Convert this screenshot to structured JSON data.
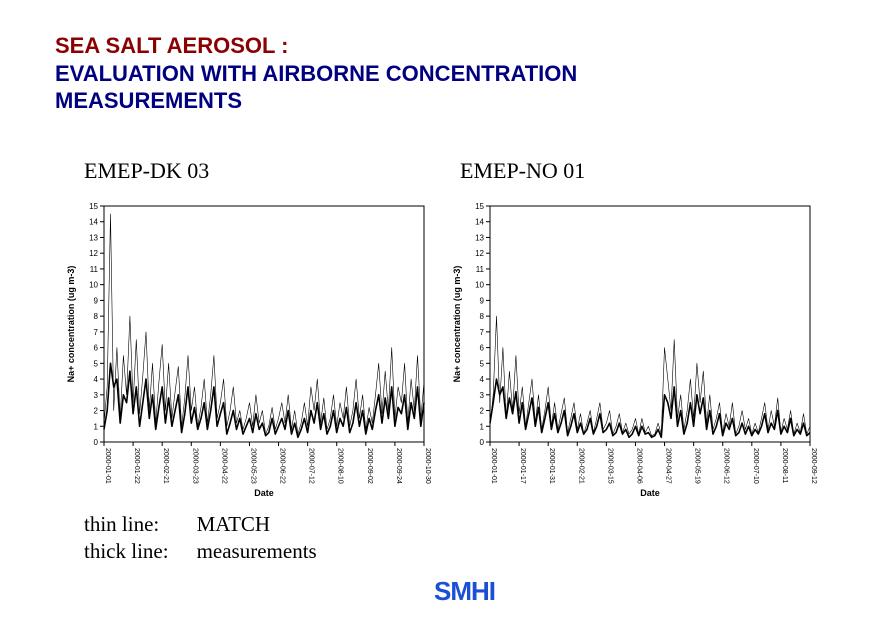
{
  "title": {
    "line1": "SEA SALT AEROSOL :",
    "line2": "EVALUATION WITH AIRBORNE CONCENTRATION",
    "line3": "MEASUREMENTS"
  },
  "charts": {
    "left": {
      "label": "EMEP-DK 03",
      "type": "line",
      "y_axis_label": "Na+ concentration (ug m-3)",
      "x_axis_label": "Date",
      "ylim": [
        0,
        15
      ],
      "ytick_step": 1,
      "background_color": "#ffffff",
      "axis_color": "#000000",
      "x_ticks": [
        "2000-01-01",
        "2000-01-22",
        "2000-02-21",
        "2000-03-23",
        "2000-04-22",
        "2000-05-23",
        "2000-06-22",
        "2000-07-12",
        "2000-08-10",
        "2000-09-02",
        "2000-09-24",
        "2000-10-30"
      ],
      "series": [
        {
          "name": "MATCH",
          "stroke": "#000000",
          "stroke_width": 0.6,
          "values": [
            1.2,
            3.5,
            14.5,
            2.0,
            6.0,
            1.5,
            5.5,
            3.0,
            8.0,
            2.5,
            6.5,
            1.8,
            4.2,
            7.0,
            2.0,
            5.0,
            1.2,
            3.8,
            6.2,
            2.0,
            5.0,
            1.5,
            3.2,
            4.8,
            1.0,
            2.8,
            5.5,
            2.0,
            3.5,
            1.0,
            2.2,
            4.0,
            1.2,
            3.0,
            5.5,
            1.5,
            2.5,
            4.0,
            1.0,
            2.0,
            3.5,
            1.2,
            2.0,
            0.8,
            1.5,
            2.5,
            1.0,
            3.0,
            1.2,
            2.0,
            0.5,
            1.0,
            2.2,
            0.8,
            1.5,
            2.5,
            1.2,
            3.0,
            0.8,
            2.0,
            0.5,
            1.2,
            2.5,
            1.0,
            3.5,
            2.0,
            4.0,
            1.2,
            2.8,
            0.8,
            1.5,
            3.0,
            1.0,
            2.5,
            1.5,
            3.5,
            1.0,
            2.0,
            4.0,
            1.5,
            3.0,
            0.8,
            2.2,
            1.2,
            3.0,
            5.0,
            1.8,
            4.5,
            2.0,
            6.0,
            1.5,
            3.5,
            2.5,
            5.0,
            1.2,
            4.0,
            2.0,
            5.5,
            1.5,
            3.8
          ]
        },
        {
          "name": "measurements",
          "stroke": "#000000",
          "stroke_width": 1.6,
          "values": [
            0.8,
            2.0,
            5.0,
            3.5,
            4.0,
            1.2,
            3.0,
            2.5,
            4.5,
            1.8,
            3.5,
            1.0,
            2.5,
            4.0,
            1.5,
            3.0,
            0.8,
            2.2,
            3.5,
            1.2,
            2.8,
            1.0,
            2.0,
            3.0,
            0.6,
            1.8,
            3.5,
            1.2,
            2.2,
            0.8,
            1.5,
            2.5,
            0.8,
            2.0,
            3.5,
            1.0,
            1.8,
            2.5,
            0.5,
            1.2,
            2.0,
            0.8,
            1.5,
            0.5,
            1.0,
            1.5,
            0.6,
            1.8,
            0.8,
            1.2,
            0.4,
            0.6,
            1.5,
            0.5,
            1.0,
            1.5,
            0.8,
            2.0,
            0.5,
            1.2,
            0.3,
            0.8,
            1.5,
            0.6,
            2.0,
            1.2,
            2.5,
            0.8,
            1.8,
            0.5,
            1.0,
            2.0,
            0.6,
            1.5,
            1.0,
            2.2,
            0.6,
            1.2,
            2.5,
            1.0,
            2.0,
            0.5,
            1.5,
            0.8,
            2.0,
            3.0,
            1.2,
            2.8,
            1.5,
            3.5,
            1.0,
            2.2,
            1.8,
            3.0,
            0.8,
            2.5,
            1.5,
            3.5,
            1.0,
            2.5
          ]
        }
      ]
    },
    "right": {
      "label": "EMEP-NO 01",
      "type": "line",
      "y_axis_label": "Na+ concentration (ug m-3)",
      "x_axis_label": "Date",
      "ylim": [
        0,
        15
      ],
      "ytick_step": 1,
      "background_color": "#ffffff",
      "axis_color": "#000000",
      "x_ticks": [
        "2000-01-01",
        "2000-01-17",
        "2000-01-31",
        "2000-02-21",
        "2000-03-15",
        "2000-04-06",
        "2000-04-27",
        "2000-05-19",
        "2000-06-12",
        "2000-07-10",
        "2000-08-11",
        "2000-09-12"
      ],
      "series": [
        {
          "name": "MATCH",
          "stroke": "#000000",
          "stroke_width": 0.6,
          "values": [
            1.0,
            3.0,
            8.0,
            2.5,
            6.0,
            1.5,
            4.5,
            2.0,
            5.5,
            1.8,
            3.5,
            1.0,
            2.5,
            4.0,
            1.2,
            3.0,
            0.8,
            2.0,
            3.5,
            1.0,
            2.5,
            0.8,
            1.8,
            2.8,
            0.6,
            1.5,
            2.5,
            0.8,
            1.8,
            0.5,
            1.2,
            2.0,
            0.6,
            1.5,
            2.5,
            0.8,
            1.2,
            2.0,
            0.5,
            1.0,
            1.8,
            0.6,
            1.2,
            0.5,
            0.8,
            1.5,
            0.5,
            1.5,
            0.6,
            1.0,
            0.4,
            0.5,
            1.2,
            0.5,
            6.0,
            4.0,
            2.0,
            6.5,
            1.5,
            3.0,
            0.8,
            2.0,
            4.0,
            1.5,
            5.0,
            2.5,
            4.5,
            1.2,
            3.0,
            0.8,
            1.5,
            2.5,
            0.6,
            1.8,
            1.0,
            2.5,
            0.5,
            1.0,
            2.0,
            0.8,
            1.5,
            0.5,
            1.2,
            0.6,
            1.5,
            2.5,
            0.8,
            2.0,
            1.0,
            2.8,
            0.6,
            1.5,
            0.8,
            2.0,
            0.5,
            1.2,
            0.6,
            1.8,
            0.5,
            1.0
          ]
        },
        {
          "name": "measurements",
          "stroke": "#000000",
          "stroke_width": 1.6,
          "values": [
            1.2,
            2.5,
            4.0,
            3.0,
            3.5,
            1.5,
            2.8,
            1.8,
            3.2,
            1.2,
            2.5,
            0.8,
            1.8,
            2.8,
            1.0,
            2.2,
            0.6,
            1.5,
            2.5,
            0.8,
            1.8,
            0.6,
            1.2,
            2.0,
            0.4,
            1.0,
            1.8,
            0.6,
            1.2,
            0.5,
            0.8,
            1.5,
            0.5,
            1.0,
            1.8,
            0.6,
            0.8,
            1.2,
            0.4,
            0.6,
            1.2,
            0.5,
            0.8,
            0.3,
            0.5,
            1.0,
            0.4,
            1.0,
            0.5,
            0.6,
            0.3,
            0.4,
            0.8,
            0.3,
            3.0,
            2.5,
            1.5,
            3.5,
            1.0,
            2.0,
            0.5,
            1.2,
            2.5,
            1.0,
            3.0,
            1.8,
            2.8,
            0.8,
            2.0,
            0.5,
            1.0,
            1.8,
            0.4,
            1.2,
            0.8,
            1.5,
            0.4,
            0.6,
            1.2,
            0.5,
            1.0,
            0.4,
            0.8,
            0.5,
            1.0,
            1.8,
            0.6,
            1.2,
            0.8,
            2.0,
            0.5,
            1.0,
            0.6,
            1.5,
            0.4,
            0.8,
            0.5,
            1.2,
            0.4,
            0.6
          ]
        }
      ]
    }
  },
  "legend": {
    "row1": {
      "left": "thin line:",
      "right": "MATCH"
    },
    "row2": {
      "left": "thick line:",
      "right": "measurements"
    }
  },
  "logo_text": "SMHI"
}
